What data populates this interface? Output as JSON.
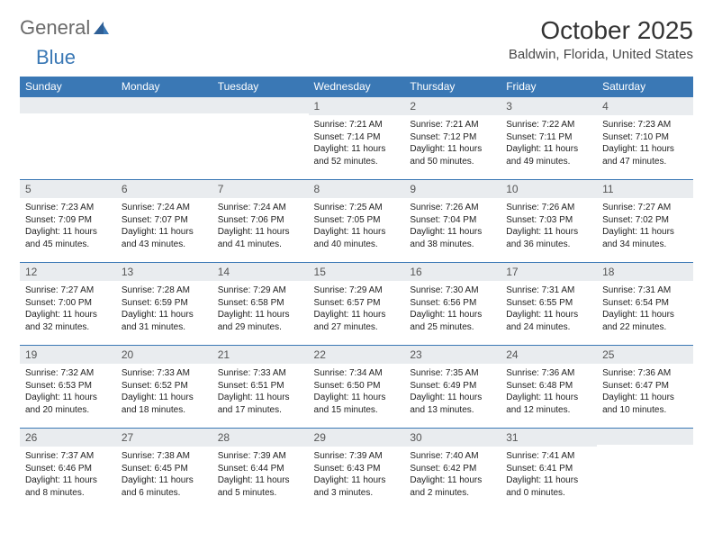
{
  "logo": {
    "text1": "General",
    "text2": "Blue"
  },
  "title": "October 2025",
  "location": "Baldwin, Florida, United States",
  "colors": {
    "header_bg": "#3a78b5",
    "header_text": "#ffffff",
    "daynum_bg": "#e9ecef",
    "border": "#3a78b5",
    "logo_gray": "#6a6a6a",
    "logo_blue": "#3a78b5"
  },
  "weekdays": [
    "Sunday",
    "Monday",
    "Tuesday",
    "Wednesday",
    "Thursday",
    "Friday",
    "Saturday"
  ],
  "weeks": [
    [
      {
        "n": "",
        "lines": []
      },
      {
        "n": "",
        "lines": []
      },
      {
        "n": "",
        "lines": []
      },
      {
        "n": "1",
        "lines": [
          "Sunrise: 7:21 AM",
          "Sunset: 7:14 PM",
          "Daylight: 11 hours and 52 minutes."
        ]
      },
      {
        "n": "2",
        "lines": [
          "Sunrise: 7:21 AM",
          "Sunset: 7:12 PM",
          "Daylight: 11 hours and 50 minutes."
        ]
      },
      {
        "n": "3",
        "lines": [
          "Sunrise: 7:22 AM",
          "Sunset: 7:11 PM",
          "Daylight: 11 hours and 49 minutes."
        ]
      },
      {
        "n": "4",
        "lines": [
          "Sunrise: 7:23 AM",
          "Sunset: 7:10 PM",
          "Daylight: 11 hours and 47 minutes."
        ]
      }
    ],
    [
      {
        "n": "5",
        "lines": [
          "Sunrise: 7:23 AM",
          "Sunset: 7:09 PM",
          "Daylight: 11 hours and 45 minutes."
        ]
      },
      {
        "n": "6",
        "lines": [
          "Sunrise: 7:24 AM",
          "Sunset: 7:07 PM",
          "Daylight: 11 hours and 43 minutes."
        ]
      },
      {
        "n": "7",
        "lines": [
          "Sunrise: 7:24 AM",
          "Sunset: 7:06 PM",
          "Daylight: 11 hours and 41 minutes."
        ]
      },
      {
        "n": "8",
        "lines": [
          "Sunrise: 7:25 AM",
          "Sunset: 7:05 PM",
          "Daylight: 11 hours and 40 minutes."
        ]
      },
      {
        "n": "9",
        "lines": [
          "Sunrise: 7:26 AM",
          "Sunset: 7:04 PM",
          "Daylight: 11 hours and 38 minutes."
        ]
      },
      {
        "n": "10",
        "lines": [
          "Sunrise: 7:26 AM",
          "Sunset: 7:03 PM",
          "Daylight: 11 hours and 36 minutes."
        ]
      },
      {
        "n": "11",
        "lines": [
          "Sunrise: 7:27 AM",
          "Sunset: 7:02 PM",
          "Daylight: 11 hours and 34 minutes."
        ]
      }
    ],
    [
      {
        "n": "12",
        "lines": [
          "Sunrise: 7:27 AM",
          "Sunset: 7:00 PM",
          "Daylight: 11 hours and 32 minutes."
        ]
      },
      {
        "n": "13",
        "lines": [
          "Sunrise: 7:28 AM",
          "Sunset: 6:59 PM",
          "Daylight: 11 hours and 31 minutes."
        ]
      },
      {
        "n": "14",
        "lines": [
          "Sunrise: 7:29 AM",
          "Sunset: 6:58 PM",
          "Daylight: 11 hours and 29 minutes."
        ]
      },
      {
        "n": "15",
        "lines": [
          "Sunrise: 7:29 AM",
          "Sunset: 6:57 PM",
          "Daylight: 11 hours and 27 minutes."
        ]
      },
      {
        "n": "16",
        "lines": [
          "Sunrise: 7:30 AM",
          "Sunset: 6:56 PM",
          "Daylight: 11 hours and 25 minutes."
        ]
      },
      {
        "n": "17",
        "lines": [
          "Sunrise: 7:31 AM",
          "Sunset: 6:55 PM",
          "Daylight: 11 hours and 24 minutes."
        ]
      },
      {
        "n": "18",
        "lines": [
          "Sunrise: 7:31 AM",
          "Sunset: 6:54 PM",
          "Daylight: 11 hours and 22 minutes."
        ]
      }
    ],
    [
      {
        "n": "19",
        "lines": [
          "Sunrise: 7:32 AM",
          "Sunset: 6:53 PM",
          "Daylight: 11 hours and 20 minutes."
        ]
      },
      {
        "n": "20",
        "lines": [
          "Sunrise: 7:33 AM",
          "Sunset: 6:52 PM",
          "Daylight: 11 hours and 18 minutes."
        ]
      },
      {
        "n": "21",
        "lines": [
          "Sunrise: 7:33 AM",
          "Sunset: 6:51 PM",
          "Daylight: 11 hours and 17 minutes."
        ]
      },
      {
        "n": "22",
        "lines": [
          "Sunrise: 7:34 AM",
          "Sunset: 6:50 PM",
          "Daylight: 11 hours and 15 minutes."
        ]
      },
      {
        "n": "23",
        "lines": [
          "Sunrise: 7:35 AM",
          "Sunset: 6:49 PM",
          "Daylight: 11 hours and 13 minutes."
        ]
      },
      {
        "n": "24",
        "lines": [
          "Sunrise: 7:36 AM",
          "Sunset: 6:48 PM",
          "Daylight: 11 hours and 12 minutes."
        ]
      },
      {
        "n": "25",
        "lines": [
          "Sunrise: 7:36 AM",
          "Sunset: 6:47 PM",
          "Daylight: 11 hours and 10 minutes."
        ]
      }
    ],
    [
      {
        "n": "26",
        "lines": [
          "Sunrise: 7:37 AM",
          "Sunset: 6:46 PM",
          "Daylight: 11 hours and 8 minutes."
        ]
      },
      {
        "n": "27",
        "lines": [
          "Sunrise: 7:38 AM",
          "Sunset: 6:45 PM",
          "Daylight: 11 hours and 6 minutes."
        ]
      },
      {
        "n": "28",
        "lines": [
          "Sunrise: 7:39 AM",
          "Sunset: 6:44 PM",
          "Daylight: 11 hours and 5 minutes."
        ]
      },
      {
        "n": "29",
        "lines": [
          "Sunrise: 7:39 AM",
          "Sunset: 6:43 PM",
          "Daylight: 11 hours and 3 minutes."
        ]
      },
      {
        "n": "30",
        "lines": [
          "Sunrise: 7:40 AM",
          "Sunset: 6:42 PM",
          "Daylight: 11 hours and 2 minutes."
        ]
      },
      {
        "n": "31",
        "lines": [
          "Sunrise: 7:41 AM",
          "Sunset: 6:41 PM",
          "Daylight: 11 hours and 0 minutes."
        ]
      },
      {
        "n": "",
        "lines": []
      }
    ]
  ]
}
